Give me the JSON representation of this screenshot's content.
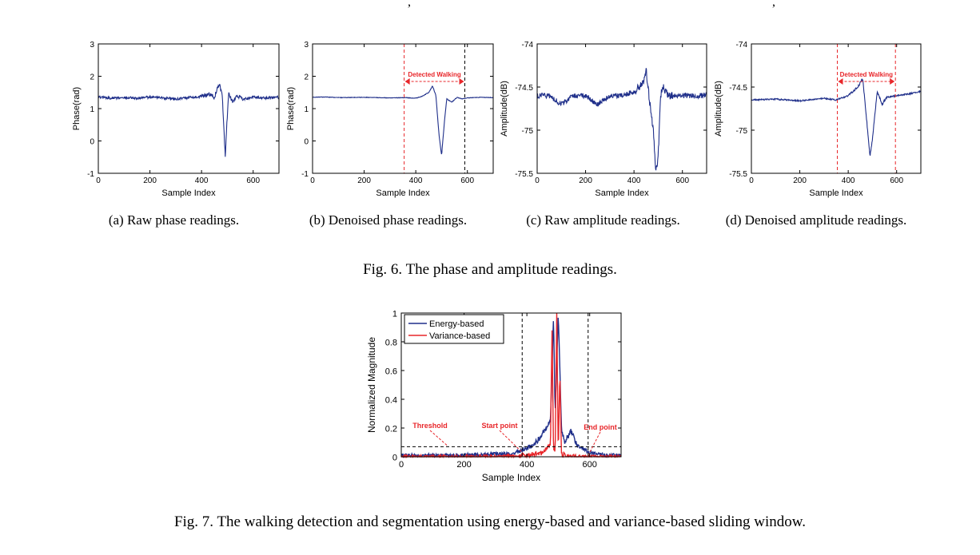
{
  "fig6": {
    "caption": "Fig. 6.  The phase and amplitude readings.",
    "subcaptions": [
      "(a)  Raw phase readings.",
      "(b)  Denoised phase readings.",
      "(c)  Raw amplitude readings.",
      "(d)  Denoised amplitude readings."
    ]
  },
  "fig7": {
    "caption": "Fig. 7.  The walking detection and segmentation using energy-based and variance-based sliding window."
  },
  "chart_data": [
    {
      "id": "a",
      "type": "line",
      "xlabel": "Sample Index",
      "ylabel": "Phase(rad)",
      "xlim": [
        0,
        700
      ],
      "ylim": [
        -1,
        3
      ],
      "xticks": [
        "0",
        "200",
        "400",
        "600"
      ],
      "yticks": [
        "-1",
        "0",
        "1",
        "2",
        "3"
      ],
      "series": [
        {
          "color": "#1f2f8a",
          "x": [
            0,
            50,
            100,
            150,
            200,
            250,
            300,
            350,
            400,
            430,
            450,
            460,
            470,
            480,
            487,
            492,
            497,
            505,
            520,
            540,
            560,
            600,
            650,
            700
          ],
          "y": [
            1.35,
            1.33,
            1.34,
            1.32,
            1.35,
            1.33,
            1.3,
            1.34,
            1.38,
            1.45,
            1.35,
            1.6,
            1.75,
            1.4,
            0.3,
            -0.55,
            0.4,
            1.45,
            1.2,
            1.4,
            1.3,
            1.35,
            1.33,
            1.35
          ]
        }
      ]
    },
    {
      "id": "b",
      "type": "line",
      "xlabel": "Sample Index",
      "ylabel": "Phase(rad)",
      "xlim": [
        0,
        700
      ],
      "ylim": [
        -1,
        3
      ],
      "xticks": [
        "0",
        "200",
        "400",
        "600"
      ],
      "yticks": [
        "-1",
        "0",
        "1",
        "2",
        "3"
      ],
      "annotation": "Detected Walking",
      "markers": [
        {
          "x": 355,
          "color": "#e8262a"
        },
        {
          "x": 590,
          "color": "#000000"
        }
      ],
      "series": [
        {
          "color": "#1f2f8a",
          "x": [
            0,
            50,
            100,
            200,
            300,
            360,
            400,
            430,
            450,
            465,
            478,
            490,
            500,
            510,
            520,
            540,
            560,
            580,
            600,
            650,
            700
          ],
          "y": [
            1.35,
            1.36,
            1.34,
            1.35,
            1.33,
            1.34,
            1.32,
            1.4,
            1.5,
            1.7,
            1.4,
            0.2,
            -0.45,
            0.5,
            1.3,
            1.2,
            1.35,
            1.3,
            1.33,
            1.35,
            1.34
          ]
        }
      ]
    },
    {
      "id": "c",
      "type": "line",
      "xlabel": "Sample Index",
      "ylabel": "Amplitude(dB)",
      "xlim": [
        0,
        700
      ],
      "ylim": [
        -75.5,
        -74
      ],
      "xticks": [
        "0",
        "200",
        "400",
        "600"
      ],
      "yticks": [
        "-75.5",
        "-75",
        "-74.5",
        "-74"
      ],
      "series": [
        {
          "color": "#1f2f8a",
          "x": [
            0,
            50,
            100,
            150,
            200,
            250,
            300,
            350,
            400,
            420,
            440,
            450,
            460,
            470,
            480,
            490,
            500,
            510,
            520,
            540,
            560,
            600,
            650,
            700
          ],
          "y": [
            -74.6,
            -74.6,
            -74.7,
            -74.6,
            -74.6,
            -74.7,
            -74.6,
            -74.6,
            -74.55,
            -74.5,
            -74.45,
            -74.3,
            -74.55,
            -74.8,
            -75.0,
            -75.5,
            -75.3,
            -74.6,
            -74.5,
            -74.6,
            -74.6,
            -74.6,
            -74.6,
            -74.6
          ]
        }
      ]
    },
    {
      "id": "d",
      "type": "line",
      "xlabel": "Sample Index",
      "ylabel": "Amplitude(dB)",
      "xlim": [
        0,
        700
      ],
      "ylim": [
        -75.5,
        -74
      ],
      "xticks": [
        "0",
        "200",
        "400",
        "600"
      ],
      "yticks": [
        "-75.5",
        "-75",
        "-74.5",
        "-74"
      ],
      "annotation": "Detected Walking",
      "markers": [
        {
          "x": 355,
          "color": "#e8262a"
        },
        {
          "x": 595,
          "color": "#e8262a"
        }
      ],
      "series": [
        {
          "color": "#1f2f8a",
          "x": [
            0,
            100,
            200,
            300,
            350,
            400,
            420,
            440,
            460,
            470,
            480,
            490,
            500,
            520,
            540,
            560,
            600,
            650,
            700
          ],
          "y": [
            -74.65,
            -74.64,
            -74.66,
            -74.63,
            -74.65,
            -74.6,
            -74.55,
            -74.5,
            -74.4,
            -74.7,
            -75.0,
            -75.3,
            -75.1,
            -74.55,
            -74.7,
            -74.62,
            -74.6,
            -74.58,
            -74.55
          ]
        }
      ]
    },
    {
      "id": "fig7",
      "type": "line",
      "xlabel": "Sample Index",
      "ylabel": "Normalized Magnitude",
      "xlim": [
        0,
        700
      ],
      "ylim": [
        0,
        1
      ],
      "xticks": [
        "0",
        "200",
        "400",
        "600"
      ],
      "yticks": [
        "0",
        "0.2",
        "0.4",
        "0.6",
        "0.8",
        "1"
      ],
      "threshold": 0.07,
      "markers": [
        {
          "x": 385
        },
        {
          "x": 595
        }
      ],
      "annotations": [
        "Threshold",
        "Start point",
        "End point"
      ],
      "legend": "top-left",
      "series": [
        {
          "name": "Energy-based",
          "color": "#1f2f8a",
          "x": [
            0,
            100,
            200,
            300,
            350,
            380,
            400,
            420,
            440,
            460,
            475,
            485,
            490,
            500,
            510,
            520,
            540,
            560,
            600,
            650,
            700
          ],
          "y": [
            0.01,
            0.01,
            0.01,
            0.02,
            0.02,
            0.04,
            0.06,
            0.08,
            0.13,
            0.2,
            0.25,
            0.97,
            0.3,
            1.0,
            0.2,
            0.1,
            0.18,
            0.08,
            0.03,
            0.01,
            0.01
          ]
        },
        {
          "name": "Variance-based",
          "color": "#e8262a",
          "x": [
            0,
            100,
            200,
            300,
            400,
            440,
            460,
            475,
            480,
            485,
            490,
            495,
            500,
            505,
            510,
            520,
            540,
            600,
            700
          ],
          "y": [
            0.0,
            0.0,
            0.0,
            0.0,
            0.01,
            0.02,
            0.05,
            0.08,
            0.88,
            0.05,
            0.02,
            1.0,
            0.02,
            0.6,
            0.02,
            0.01,
            0.0,
            0.0,
            0.0
          ]
        }
      ]
    }
  ]
}
